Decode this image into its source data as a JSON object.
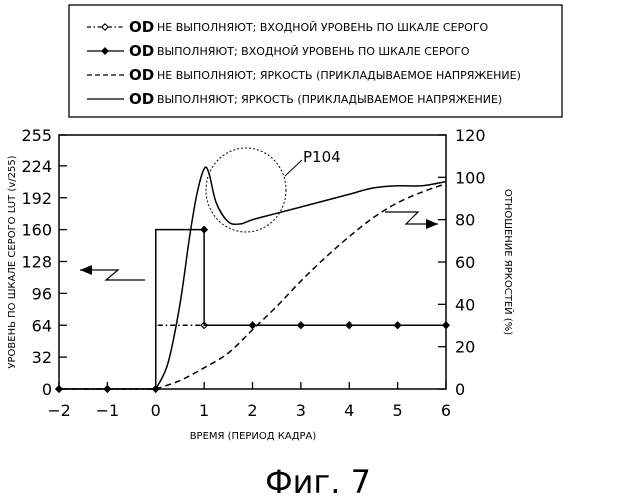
{
  "legend": [
    {
      "od": "OD",
      "text": "НЕ ВЫПОЛНЯЮТ; ВХОДНОЙ УРОВЕНЬ ПО ШКАЛЕ СЕРОГО",
      "style": "dash-dot-diamond-open"
    },
    {
      "od": "OD",
      "text": "ВЫПОЛНЯЮТ; ВХОДНОЙ УРОВЕНЬ ПО ШКАЛЕ СЕРОГО",
      "style": "solid-diamond-filled"
    },
    {
      "od": "OD",
      "text": "НЕ ВЫПОЛНЯЮТ; ЯРКОСТЬ (ПРИКЛАДЫВАЕМОЕ НАПРЯЖЕНИЕ)",
      "style": "dashed"
    },
    {
      "od": "OD",
      "text": "ВЫПОЛНЯЮТ; ЯРКОСТЬ (ПРИКЛАДЫВАЕМОЕ НАПРЯЖЕНИЕ)",
      "style": "solid"
    }
  ],
  "caption": "Фиг. 7",
  "chart_data": {
    "type": "line",
    "xlabel": "ВРЕМЯ (ПЕРИОД КАДРА)",
    "ylabel_left": "УРОВЕНЬ ПО ШКАЛЕ СЕРОГО LUT (v/255)",
    "ylabel_right": "ОТНОШЕНИЕ ЯРКОСТЕЙ (%)",
    "xlim": [
      -2,
      6
    ],
    "ylim_left": [
      0,
      255
    ],
    "ylim_right": [
      0,
      120
    ],
    "x_ticks": [
      -2,
      -1,
      0,
      1,
      2,
      3,
      4,
      5,
      6
    ],
    "y_ticks_left": [
      0,
      32,
      64,
      96,
      128,
      160,
      192,
      224,
      255
    ],
    "y_ticks_right": [
      0,
      20,
      40,
      60,
      80,
      100,
      120
    ],
    "grid": false,
    "legend_position": "top",
    "annotation": {
      "label": "P104",
      "x": 1.4,
      "y_right": 91
    },
    "series": [
      {
        "name": "OD НЕ ВЫПОЛНЯЮТ; ВХОДНОЙ УРОВЕНЬ ПО ШКАЛЕ СЕРОГО",
        "axis": "left",
        "style": "dash-dot-diamond-open",
        "x": [
          -2,
          -1,
          0,
          0,
          1,
          2,
          3,
          4,
          5,
          6
        ],
        "y": [
          0,
          0,
          0,
          64,
          64,
          64,
          64,
          64,
          64,
          64
        ]
      },
      {
        "name": "OD ВЫПОЛНЯЮТ; ВХОДНОЙ УРОВЕНЬ ПО ШКАЛЕ СЕРОГО",
        "axis": "left",
        "style": "solid-diamond-filled",
        "x": [
          -2,
          -1,
          0,
          0,
          1,
          1,
          2,
          3,
          4,
          5,
          6
        ],
        "y": [
          0,
          0,
          0,
          160,
          160,
          64,
          64,
          64,
          64,
          64,
          64
        ]
      },
      {
        "name": "OD НЕ ВЫПОЛНЯЮТ; ЯРКОСТЬ (ПРИКЛАДЫВАЕМОЕ НАПРЯЖЕНИЕ)",
        "axis": "right",
        "style": "dashed",
        "x": [
          0,
          0.5,
          1,
          1.5,
          2,
          2.5,
          3,
          3.5,
          4,
          4.5,
          5,
          5.5,
          6
        ],
        "y": [
          0,
          4,
          10,
          17,
          28,
          39,
          51,
          62,
          72,
          81,
          88,
          93,
          97
        ]
      },
      {
        "name": "OD ВЫПОЛНЯЮТ; ЯРКОСТЬ (ПРИКЛАДЫВАЕМОЕ НАПРЯЖЕНИЕ)",
        "axis": "right",
        "style": "solid",
        "x": [
          0,
          0.25,
          0.5,
          0.7,
          0.85,
          1.0,
          1.1,
          1.25,
          1.5,
          1.75,
          2.0,
          2.5,
          3.0,
          3.5,
          4.0,
          4.5,
          5.0,
          5.5,
          6.0
        ],
        "y": [
          0,
          12,
          40,
          72,
          92,
          104,
          102,
          88,
          79,
          78,
          80,
          83,
          86,
          89,
          92,
          95,
          96,
          96,
          98
        ]
      }
    ]
  }
}
